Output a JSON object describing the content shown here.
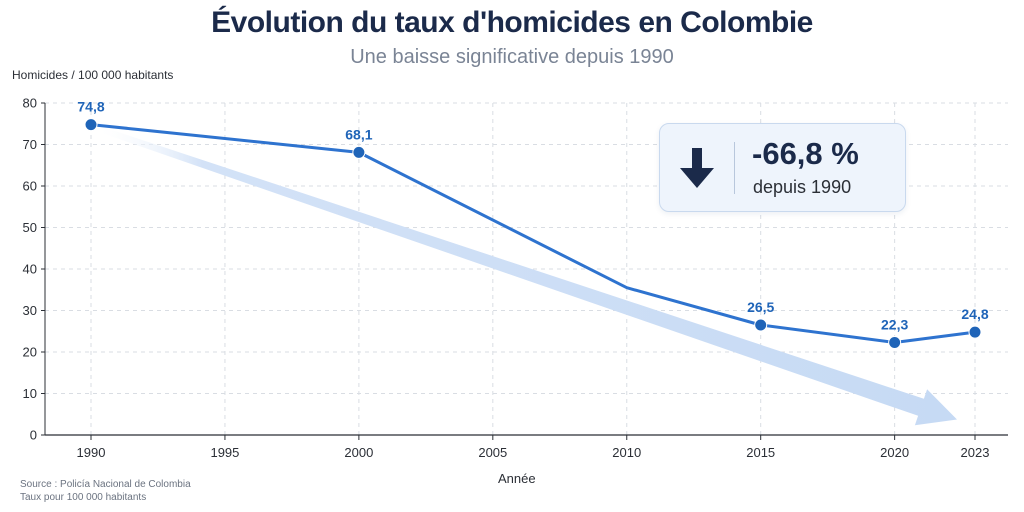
{
  "header": {
    "title": "Évolution du taux d'homicides en Colombie",
    "subtitle": "Une baisse significative depuis 1990"
  },
  "callout": {
    "value": "-66,8 %",
    "label": "depuis 1990",
    "icon": "arrow-down-icon"
  },
  "footer": {
    "source_line1": "Source : Policía Nacional de Colombia",
    "source_line2": "Taux pour 100 000 habitants"
  },
  "chart_data": {
    "type": "line",
    "xlabel": "Année",
    "ylabel": "Homicides / 100 000 habitants",
    "xlim": [
      1990,
      2023
    ],
    "ylim": [
      0,
      80
    ],
    "xticks": [
      1990,
      1995,
      2000,
      2005,
      2010,
      2015,
      2020,
      2023
    ],
    "yticks": [
      0,
      10,
      20,
      30,
      40,
      50,
      60,
      70,
      80
    ],
    "grid": true,
    "series": [
      {
        "x": [
          1990,
          2000,
          2010,
          2015,
          2020,
          2023
        ],
        "y": [
          74.8,
          68.1,
          35.5,
          26.5,
          22.3,
          24.8
        ],
        "markers": [
          1990,
          2000,
          2015,
          2020,
          2023
        ],
        "labels": [
          "74,8",
          "68,1",
          "",
          "26,5",
          "22,3",
          "24,8"
        ],
        "color": "#2e73cf"
      }
    ],
    "trend": {
      "from": [
        1990,
        74.8
      ],
      "to": [
        2023,
        3.5
      ],
      "color": "#c9dcf5"
    },
    "marker_color": "#1f64b8",
    "axis_color": "#2b2f36",
    "grid_color": "#d9dde3"
  }
}
